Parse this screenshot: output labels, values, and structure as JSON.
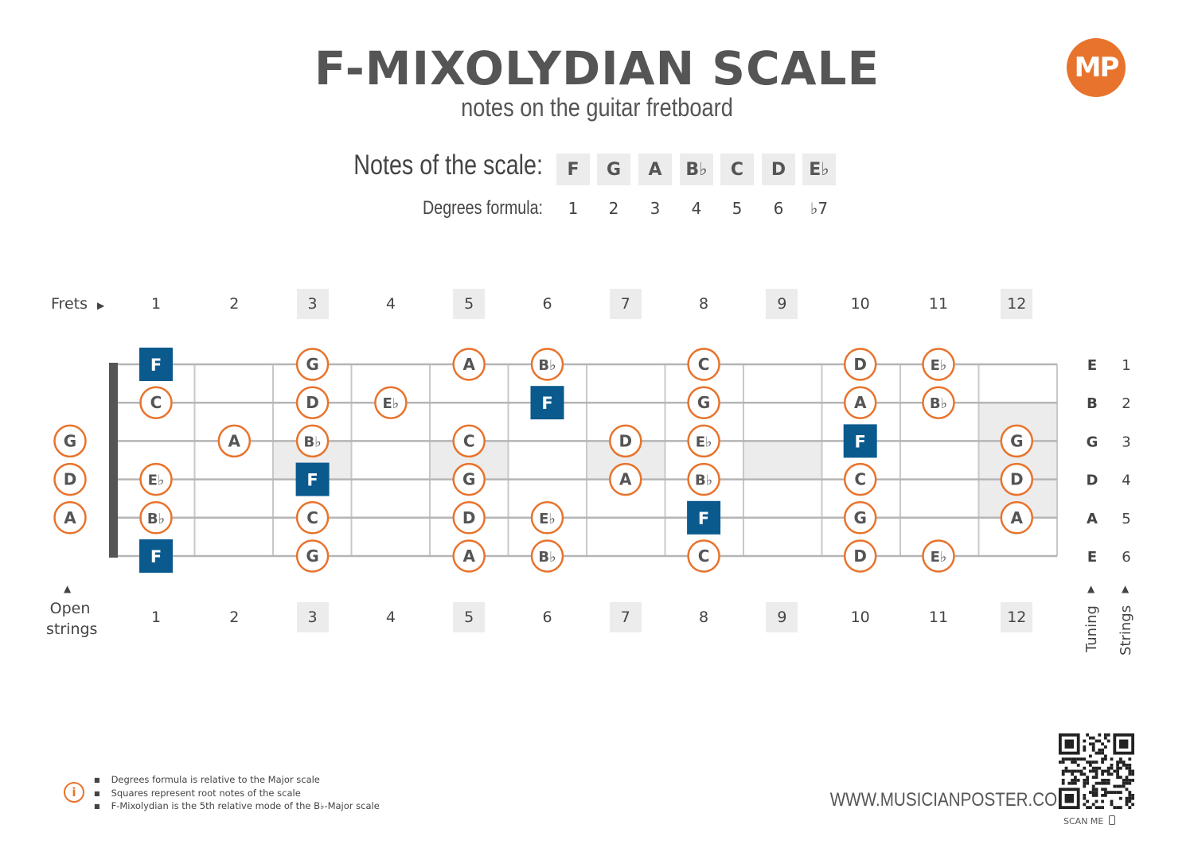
{
  "header": {
    "title": "F-MIXOLYDIAN SCALE",
    "subtitle": "notes on the guitar fretboard",
    "logo_text": "MP"
  },
  "scale": {
    "notes_label": "Notes of the scale:",
    "degrees_label": "Degrees formula:",
    "notes": [
      "F",
      "G",
      "A",
      "B♭",
      "C",
      "D",
      "E♭"
    ],
    "degrees": [
      "1",
      "2",
      "3",
      "4",
      "5",
      "6",
      "♭7"
    ]
  },
  "fretboard": {
    "frets_label": "Frets",
    "fret_numbers": [
      "1",
      "2",
      "3",
      "4",
      "5",
      "6",
      "7",
      "8",
      "9",
      "10",
      "11",
      "12"
    ],
    "shaded_frets": [
      3,
      5,
      7,
      9,
      12
    ],
    "open_strings_label": [
      "Open",
      "strings"
    ],
    "tuning_label": "Tuning",
    "strings_label": "Strings",
    "tuning": [
      "E",
      "B",
      "G",
      "D",
      "A",
      "E"
    ],
    "string_numbers": [
      "1",
      "2",
      "3",
      "4",
      "5",
      "6"
    ],
    "open_notes": [
      null,
      null,
      "G",
      "D",
      "A",
      null
    ],
    "root": "F",
    "notes": [
      {
        "string": 1,
        "fret": 1,
        "note": "F"
      },
      {
        "string": 1,
        "fret": 3,
        "note": "G"
      },
      {
        "string": 1,
        "fret": 5,
        "note": "A"
      },
      {
        "string": 1,
        "fret": 6,
        "note": "B♭"
      },
      {
        "string": 1,
        "fret": 8,
        "note": "C"
      },
      {
        "string": 1,
        "fret": 10,
        "note": "D"
      },
      {
        "string": 1,
        "fret": 11,
        "note": "E♭"
      },
      {
        "string": 2,
        "fret": 1,
        "note": "C"
      },
      {
        "string": 2,
        "fret": 3,
        "note": "D"
      },
      {
        "string": 2,
        "fret": 4,
        "note": "E♭"
      },
      {
        "string": 2,
        "fret": 6,
        "note": "F"
      },
      {
        "string": 2,
        "fret": 8,
        "note": "G"
      },
      {
        "string": 2,
        "fret": 10,
        "note": "A"
      },
      {
        "string": 2,
        "fret": 11,
        "note": "B♭"
      },
      {
        "string": 3,
        "fret": 2,
        "note": "A"
      },
      {
        "string": 3,
        "fret": 3,
        "note": "B♭"
      },
      {
        "string": 3,
        "fret": 5,
        "note": "C"
      },
      {
        "string": 3,
        "fret": 7,
        "note": "D"
      },
      {
        "string": 3,
        "fret": 8,
        "note": "E♭"
      },
      {
        "string": 3,
        "fret": 10,
        "note": "F"
      },
      {
        "string": 3,
        "fret": 12,
        "note": "G"
      },
      {
        "string": 4,
        "fret": 1,
        "note": "E♭"
      },
      {
        "string": 4,
        "fret": 3,
        "note": "F"
      },
      {
        "string": 4,
        "fret": 5,
        "note": "G"
      },
      {
        "string": 4,
        "fret": 7,
        "note": "A"
      },
      {
        "string": 4,
        "fret": 8,
        "note": "B♭"
      },
      {
        "string": 4,
        "fret": 10,
        "note": "C"
      },
      {
        "string": 4,
        "fret": 12,
        "note": "D"
      },
      {
        "string": 5,
        "fret": 1,
        "note": "B♭"
      },
      {
        "string": 5,
        "fret": 3,
        "note": "C"
      },
      {
        "string": 5,
        "fret": 5,
        "note": "D"
      },
      {
        "string": 5,
        "fret": 6,
        "note": "E♭"
      },
      {
        "string": 5,
        "fret": 8,
        "note": "F"
      },
      {
        "string": 5,
        "fret": 10,
        "note": "G"
      },
      {
        "string": 5,
        "fret": 12,
        "note": "A"
      },
      {
        "string": 6,
        "fret": 1,
        "note": "F"
      },
      {
        "string": 6,
        "fret": 3,
        "note": "G"
      },
      {
        "string": 6,
        "fret": 5,
        "note": "A"
      },
      {
        "string": 6,
        "fret": 6,
        "note": "B♭"
      },
      {
        "string": 6,
        "fret": 8,
        "note": "C"
      },
      {
        "string": 6,
        "fret": 10,
        "note": "D"
      },
      {
        "string": 6,
        "fret": 11,
        "note": "E♭"
      }
    ]
  },
  "footer": {
    "notes": [
      "Degrees formula is relative to the Major scale",
      "Squares represent root notes of the scale",
      "F-Mixolydian is the 5th relative mode of the B♭-Major scale"
    ],
    "website": "WWW.MUSICIANPOSTER.COM",
    "scan_label": "SCAN ME"
  },
  "colors": {
    "accent": "#e8732c",
    "root": "#0a5a8e",
    "shade": "#ececec",
    "string": "#b5b5b5",
    "nut": "#555555"
  }
}
